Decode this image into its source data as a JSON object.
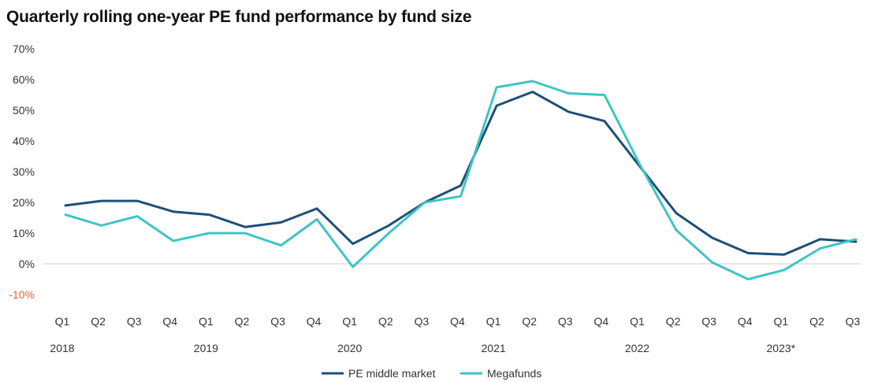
{
  "title": "Quarterly rolling one-year PE fund performance by fund size",
  "colors": {
    "middle": "#1f4e79",
    "mega": "#3fc4c4",
    "negative_tick": "#e2622a",
    "zero_line": "#cccccc"
  },
  "chart_data": {
    "type": "line",
    "title": "Quarterly rolling one-year PE fund performance by fund size",
    "x_quarters": [
      "Q1",
      "Q2",
      "Q3",
      "Q4",
      "Q1",
      "Q2",
      "Q3",
      "Q4",
      "Q1",
      "Q2",
      "Q3",
      "Q4",
      "Q1",
      "Q2",
      "Q3",
      "Q4",
      "Q1",
      "Q2",
      "Q3",
      "Q4",
      "Q1",
      "Q2",
      "Q3"
    ],
    "year_labels": [
      {
        "label": "2018",
        "quarter_index": 0
      },
      {
        "label": "2019",
        "quarter_index": 4
      },
      {
        "label": "2020",
        "quarter_index": 8
      },
      {
        "label": "2021",
        "quarter_index": 12
      },
      {
        "label": "2022",
        "quarter_index": 16
      },
      {
        "label": "2023*",
        "quarter_index": 20
      }
    ],
    "y_ticks": [
      "70%",
      "60%",
      "50%",
      "40%",
      "30%",
      "20%",
      "10%",
      "0%",
      "-10%"
    ],
    "ylim": [
      -10,
      70
    ],
    "series": [
      {
        "name": "PE middle market",
        "color": "#1f4e79",
        "values": [
          19,
          20.5,
          20.5,
          17,
          16,
          12,
          13.5,
          18,
          6.5,
          12.5,
          20,
          25.5,
          51.5,
          56,
          49.5,
          46.5,
          31.5,
          16.5,
          8.5,
          3.5,
          3,
          8,
          7.2
        ]
      },
      {
        "name": "Megafunds",
        "color": "#3fc4c4",
        "values": [
          16,
          12.5,
          15.5,
          7.5,
          10,
          10,
          6,
          14.5,
          -1,
          10,
          20,
          22,
          57.5,
          59.5,
          55.5,
          55,
          32,
          11,
          0.5,
          -5,
          -2,
          5,
          8
        ]
      }
    ],
    "legend_placement": "bottom-center",
    "grid": false
  }
}
